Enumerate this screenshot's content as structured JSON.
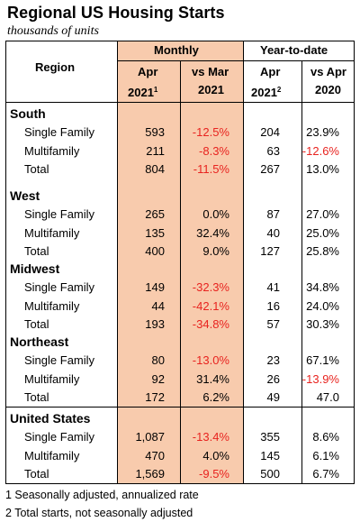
{
  "title": "Regional US Housing Starts",
  "subtitle": "thousands of units",
  "header": {
    "region": "Region",
    "monthly": "Monthly",
    "ytd": "Year-to-date",
    "apr": "Apr",
    "year_2021": "2021",
    "vs_mar": "vs Mar",
    "vs_apr": "vs Apr",
    "year_2020": "2020",
    "sup1": "1",
    "sup2": "2"
  },
  "sections": [
    {
      "name": "South",
      "rows": [
        {
          "label": "Single Family",
          "apr": "593",
          "vs_mar": "-12.5%",
          "vs_mar_neg": true,
          "ytd": "204",
          "vs_apr": "23.9%",
          "vs_apr_neg": false
        },
        {
          "label": "Multifamily",
          "apr": "211",
          "vs_mar": "-8.3%",
          "vs_mar_neg": true,
          "ytd": "63",
          "vs_apr": "-12.6%",
          "vs_apr_neg": true
        },
        {
          "label": "Total",
          "apr": "804",
          "vs_mar": "-11.5%",
          "vs_mar_neg": true,
          "ytd": "267",
          "vs_apr": "13.0%",
          "vs_apr_neg": false
        }
      ]
    },
    {
      "name": "West",
      "rows": [
        {
          "label": "Single Family",
          "apr": "265",
          "vs_mar": "0.0%",
          "vs_mar_neg": false,
          "ytd": "87",
          "vs_apr": "27.0%",
          "vs_apr_neg": false
        },
        {
          "label": "Multifamily",
          "apr": "135",
          "vs_mar": "32.4%",
          "vs_mar_neg": false,
          "ytd": "40",
          "vs_apr": "25.0%",
          "vs_apr_neg": false
        },
        {
          "label": "Total",
          "apr": "400",
          "vs_mar": "9.0%",
          "vs_mar_neg": false,
          "ytd": "127",
          "vs_apr": "25.8%",
          "vs_apr_neg": false
        }
      ]
    },
    {
      "name": "Midwest",
      "rows": [
        {
          "label": "Single Family",
          "apr": "149",
          "vs_mar": "-32.3%",
          "vs_mar_neg": true,
          "ytd": "41",
          "vs_apr": "34.8%",
          "vs_apr_neg": false
        },
        {
          "label": "Multifamily",
          "apr": "44",
          "vs_mar": "-42.1%",
          "vs_mar_neg": true,
          "ytd": "16",
          "vs_apr": "24.0%",
          "vs_apr_neg": false
        },
        {
          "label": "Total",
          "apr": "193",
          "vs_mar": "-34.8%",
          "vs_mar_neg": true,
          "ytd": "57",
          "vs_apr": "30.3%",
          "vs_apr_neg": false
        }
      ]
    },
    {
      "name": "Northeast",
      "rows": [
        {
          "label": "Single Family",
          "apr": "80",
          "vs_mar": "-13.0%",
          "vs_mar_neg": true,
          "ytd": "23",
          "vs_apr": "67.1%",
          "vs_apr_neg": false
        },
        {
          "label": "Multifamily",
          "apr": "92",
          "vs_mar": "31.4%",
          "vs_mar_neg": false,
          "ytd": "26",
          "vs_apr": "-13.9%",
          "vs_apr_neg": true
        },
        {
          "label": "Total",
          "apr": "172",
          "vs_mar": "6.2%",
          "vs_mar_neg": false,
          "ytd": "49",
          "vs_apr": "47.0",
          "vs_apr_neg": false
        }
      ]
    },
    {
      "name": "United States",
      "rows": [
        {
          "label": "Single Family",
          "apr": "1,087",
          "vs_mar": "-13.4%",
          "vs_mar_neg": true,
          "ytd": "355",
          "vs_apr": "8.6%",
          "vs_apr_neg": false
        },
        {
          "label": "Multifamily",
          "apr": "470",
          "vs_mar": "4.0%",
          "vs_mar_neg": false,
          "ytd": "145",
          "vs_apr": "6.1%",
          "vs_apr_neg": false
        },
        {
          "label": "Total",
          "apr": "1,569",
          "vs_mar": "-9.5%",
          "vs_mar_neg": true,
          "ytd": "500",
          "vs_apr": "6.7%",
          "vs_apr_neg": false
        }
      ]
    }
  ],
  "footnotes": [
    "1 Seasonally adjusted, annualized rate",
    "2 Total starts, not seasonally adjusted"
  ],
  "colors": {
    "monthly_shade": "#f8cbad",
    "negative": "#e8231f",
    "grid": "#000000"
  }
}
